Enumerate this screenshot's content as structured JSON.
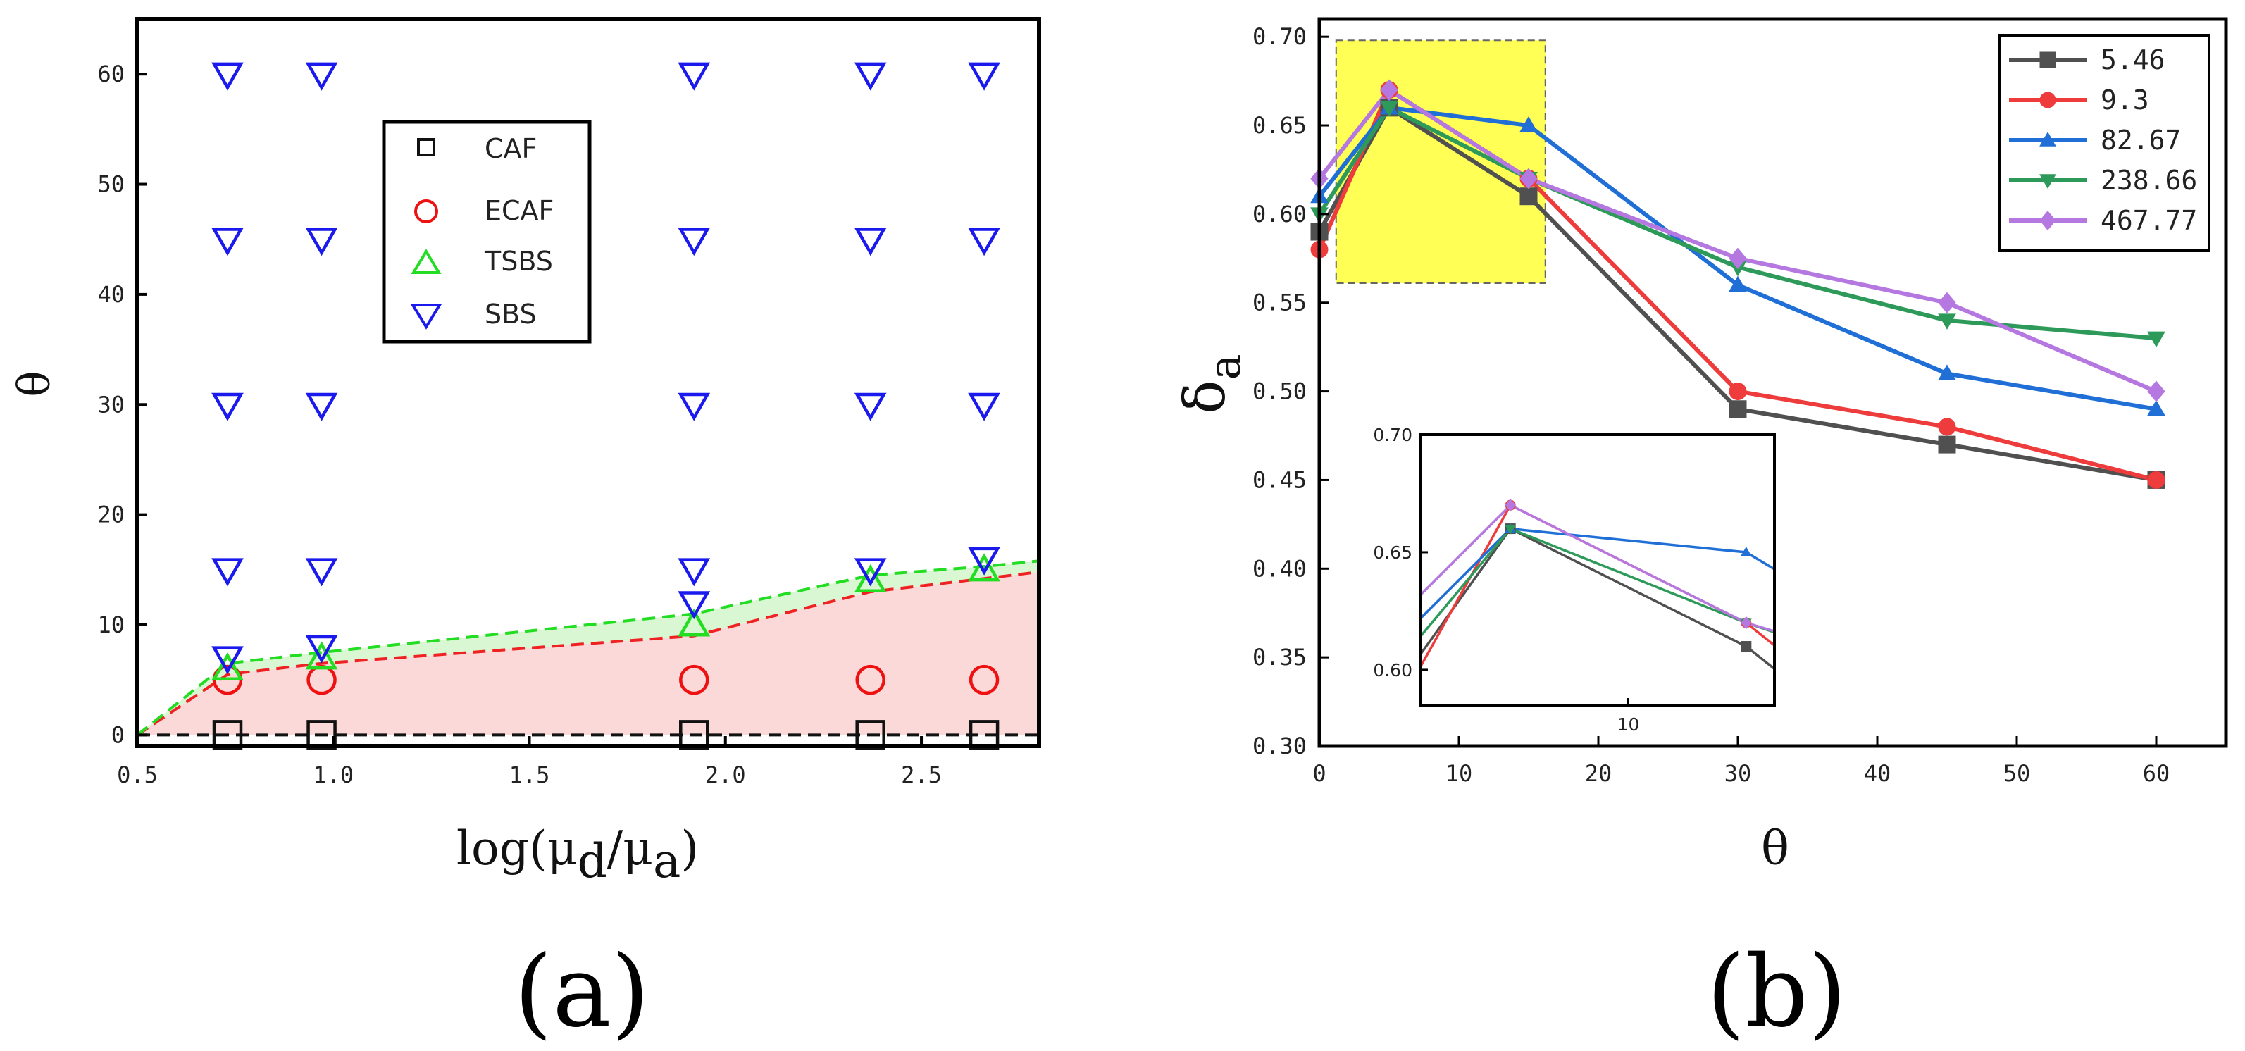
{
  "chart_data": [
    {
      "id": "a",
      "type": "scatter",
      "panel_label": "(a)",
      "xlabel": {
        "main": "log(μ",
        "sub1": "d",
        "mid": "/μ",
        "sub2": "a",
        "end": ")"
      },
      "ylabel": "θ",
      "xlim": [
        0.5,
        2.8
      ],
      "ylim": [
        -1,
        65
      ],
      "xticks": [
        0.5,
        1.0,
        1.5,
        2.0,
        2.5
      ],
      "xtick_labels": [
        "0.5",
        "1.0",
        "1.5",
        "2.0",
        "2.5"
      ],
      "yticks": [
        0,
        10,
        20,
        30,
        40,
        50,
        60
      ],
      "ytick_labels": [
        "0",
        "10",
        "20",
        "30",
        "40",
        "50",
        "60"
      ],
      "legend": {
        "position": "top-center"
      },
      "series": [
        {
          "name": "CAF",
          "marker": "square",
          "color": "#111111",
          "points": [
            [
              0.73,
              0
            ],
            [
              0.97,
              0
            ],
            [
              1.92,
              0
            ],
            [
              2.37,
              0
            ],
            [
              2.66,
              0
            ]
          ]
        },
        {
          "name": "ECAF",
          "marker": "circle",
          "color": "#ee1111",
          "points": [
            [
              0.73,
              5
            ],
            [
              0.97,
              5
            ],
            [
              1.92,
              5
            ],
            [
              2.37,
              5
            ],
            [
              2.66,
              5
            ]
          ]
        },
        {
          "name": "TSBS",
          "marker": "triangle-up",
          "color": "#22dd22",
          "points": [
            [
              0.73,
              6
            ],
            [
              0.97,
              7
            ],
            [
              1.92,
              10
            ],
            [
              2.37,
              14
            ],
            [
              2.66,
              15
            ]
          ]
        },
        {
          "name": "SBS",
          "marker": "triangle-down",
          "color": "#1a1aee",
          "points": [
            [
              0.73,
              7
            ],
            [
              0.73,
              15
            ],
            [
              0.73,
              30
            ],
            [
              0.73,
              45
            ],
            [
              0.73,
              60
            ],
            [
              0.97,
              8
            ],
            [
              0.97,
              15
            ],
            [
              0.97,
              30
            ],
            [
              0.97,
              45
            ],
            [
              0.97,
              60
            ],
            [
              1.92,
              12
            ],
            [
              1.92,
              15
            ],
            [
              1.92,
              30
            ],
            [
              1.92,
              45
            ],
            [
              1.92,
              60
            ],
            [
              2.37,
              15
            ],
            [
              2.37,
              30
            ],
            [
              2.37,
              45
            ],
            [
              2.37,
              60
            ],
            [
              2.66,
              16
            ],
            [
              2.66,
              30
            ],
            [
              2.66,
              45
            ],
            [
              2.66,
              60
            ]
          ]
        }
      ],
      "boundaries": [
        {
          "name": "CAF boundary",
          "color": "#111111",
          "points": [
            [
              0.5,
              0
            ],
            [
              2.8,
              0
            ]
          ]
        },
        {
          "name": "ECAF boundary",
          "color": "#ee2222",
          "points": [
            [
              0.5,
              0
            ],
            [
              0.73,
              5.5
            ],
            [
              0.97,
              6.5
            ],
            [
              1.92,
              9
            ],
            [
              2.37,
              13
            ],
            [
              2.66,
              14.2
            ],
            [
              2.8,
              14.8
            ]
          ]
        },
        {
          "name": "TSBS boundary",
          "color": "#22dd22",
          "points": [
            [
              0.5,
              0
            ],
            [
              0.73,
              6.5
            ],
            [
              0.97,
              7.5
            ],
            [
              1.92,
              11
            ],
            [
              2.37,
              14.5
            ],
            [
              2.66,
              15.3
            ],
            [
              2.8,
              15.8
            ]
          ]
        }
      ]
    },
    {
      "id": "b",
      "type": "line",
      "panel_label": "(b)",
      "xlabel": "θ",
      "ylabel": {
        "main": "δ",
        "sub": "a"
      },
      "xlim": [
        0,
        65
      ],
      "ylim": [
        0.3,
        0.71
      ],
      "xticks": [
        0,
        10,
        20,
        30,
        40,
        50,
        60
      ],
      "xtick_labels": [
        "0",
        "10",
        "20",
        "30",
        "40",
        "50",
        "60"
      ],
      "yticks": [
        0.3,
        0.35,
        0.4,
        0.45,
        0.5,
        0.55,
        0.6,
        0.65,
        0.7
      ],
      "ytick_labels": [
        "0.30",
        "0.35",
        "0.40",
        "0.45",
        "0.50",
        "0.55",
        "0.60",
        "0.65",
        "0.70"
      ],
      "legend": {
        "position": "top-right"
      },
      "x": [
        0,
        5,
        15,
        30,
        45,
        60
      ],
      "series": [
        {
          "name": "5.46",
          "marker": "square",
          "color": "#505050",
          "values": [
            0.59,
            0.66,
            0.61,
            0.49,
            0.47,
            0.45
          ]
        },
        {
          "name": "9.3",
          "marker": "circle",
          "color": "#ee3b3b",
          "values": [
            0.58,
            0.67,
            0.62,
            0.5,
            0.48,
            0.45
          ]
        },
        {
          "name": "82.67",
          "marker": "triangle-up",
          "color": "#1f6fd6",
          "values": [
            0.61,
            0.66,
            0.65,
            0.56,
            0.51,
            0.49
          ]
        },
        {
          "name": "238.66",
          "marker": "triangle-down",
          "color": "#2e9a5a",
          "values": [
            0.6,
            0.66,
            0.62,
            0.57,
            0.54,
            0.53
          ]
        },
        {
          "name": "467.77",
          "marker": "diamond",
          "color": "#b577e0",
          "values": [
            0.62,
            0.67,
            0.62,
            0.575,
            0.55,
            0.5
          ]
        }
      ],
      "highlight": {
        "xrange": [
          1.2,
          16.2
        ],
        "yrange": [
          0.561,
          0.698
        ],
        "color": "#ffff55"
      },
      "inset": {
        "xlim": [
          1.2,
          16.2
        ],
        "ylim": [
          0.585,
          0.7
        ],
        "xticks": [
          10
        ],
        "xtick_labels": [
          "10"
        ],
        "yticks": [
          0.6,
          0.65,
          0.7
        ],
        "ytick_labels": [
          "0.60",
          "0.65",
          "0.70"
        ]
      }
    }
  ]
}
